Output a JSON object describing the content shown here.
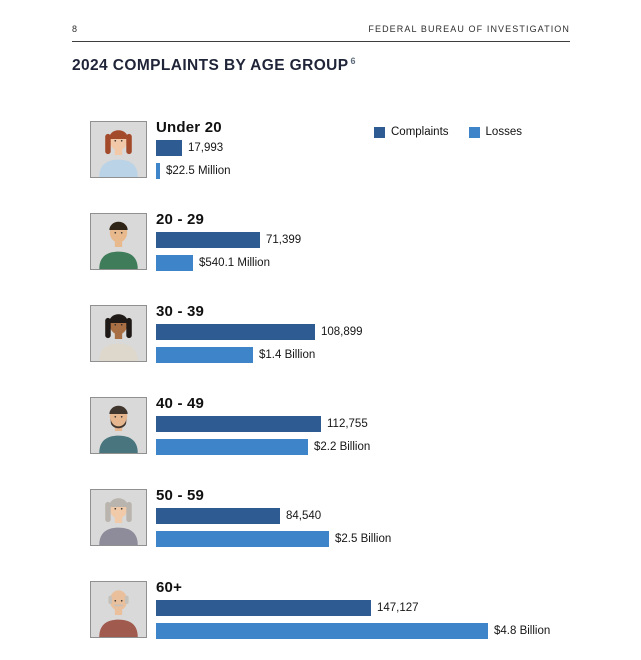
{
  "page": {
    "number": "8",
    "header": "FEDERAL BUREAU OF INVESTIGATION",
    "title": "2024 COMPLAINTS BY AGE GROUP",
    "title_footnote": "6"
  },
  "legend": {
    "items": [
      {
        "label": "Complaints",
        "color": "#2f5b93"
      },
      {
        "label": "Losses",
        "color": "#3d85c8"
      }
    ]
  },
  "chart_data": {
    "type": "bar",
    "orientation": "horizontal",
    "title": "2024 Complaints by Age Group",
    "categories": [
      "Under 20",
      "20 - 29",
      "30 - 39",
      "40 - 49",
      "50 - 59",
      "60+"
    ],
    "series": [
      {
        "name": "Complaints",
        "color": "#2f5b93",
        "values": [
          17993,
          71399,
          108899,
          112755,
          84540,
          147127
        ],
        "value_labels": [
          "17,993",
          "71,399",
          "108,899",
          "112,755",
          "84,540",
          "147,127"
        ]
      },
      {
        "name": "Losses",
        "color": "#3d85c8",
        "values_usd": [
          22500000,
          540100000,
          1400000000,
          2200000000,
          2500000000,
          4800000000
        ],
        "value_labels": [
          "$22.5 Million",
          "$540.1 Million",
          "$1.4 Billion",
          "$2.2 Billion",
          "$2.5 Billion",
          "$4.8 Billion"
        ]
      }
    ],
    "legend_position": "top-right",
    "grid": false
  },
  "avatars": [
    {
      "icon": "young-woman-avatar-icon",
      "style": "female",
      "hair": "#a34a2a",
      "skin": "#f2c9a8",
      "shirt": "#bad3e6",
      "bg": "#d9d9d9"
    },
    {
      "icon": "young-man-avatar-icon",
      "style": "male",
      "hair": "#2f2418",
      "skin": "#e9b98e",
      "shirt": "#3f7d5a",
      "bg": "#d9d9d9"
    },
    {
      "icon": "woman-avatar-icon",
      "style": "female",
      "hair": "#1f1a18",
      "skin": "#a96f44",
      "shirt": "#ded8cc",
      "bg": "#d9d9d9"
    },
    {
      "icon": "bearded-man-avatar-icon",
      "style": "male-beard",
      "hair": "#41362e",
      "skin": "#e6b68f",
      "shirt": "#49767e",
      "bg": "#d9d9d9"
    },
    {
      "icon": "older-woman-avatar-icon",
      "style": "female",
      "hair": "#b9b4ae",
      "skin": "#f0caa9",
      "shirt": "#8e8b9a",
      "bg": "#d9d9d9"
    },
    {
      "icon": "older-man-avatar-icon",
      "style": "bald",
      "hair": "#c6c1ba",
      "skin": "#e9c09b",
      "shirt": "#a05a4e",
      "bg": "#d9d9d9"
    }
  ]
}
